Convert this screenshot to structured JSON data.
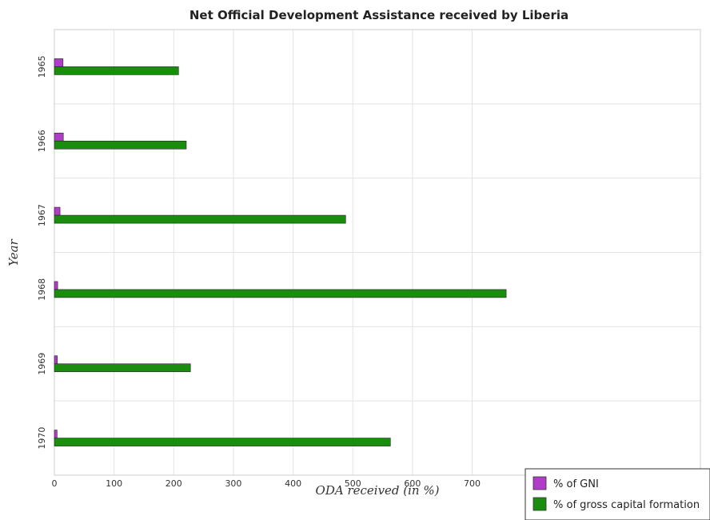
{
  "chart_data": {
    "type": "bar",
    "orientation": "horizontal",
    "title": "Net Official Development Assistance received by Liberia",
    "xlabel": "ODA received (in %)",
    "ylabel": "Year",
    "categories": [
      "1965",
      "1966",
      "1967",
      "1968",
      "1969",
      "1970"
    ],
    "xlim": [
      0,
      790
    ],
    "xticks": [
      0,
      100,
      200,
      300,
      400,
      500,
      600,
      700
    ],
    "grid": true,
    "legend_position": "bottom-right",
    "series": [
      {
        "name": "% of GNI",
        "color": "#b03cc8",
        "values": [
          14.5,
          15.0,
          9.5,
          5.5,
          5.0,
          4.5
        ]
      },
      {
        "name": "% of gross capital formation",
        "color": "#1a8c0e",
        "values": [
          208,
          221,
          488,
          757,
          228,
          563
        ]
      }
    ]
  }
}
